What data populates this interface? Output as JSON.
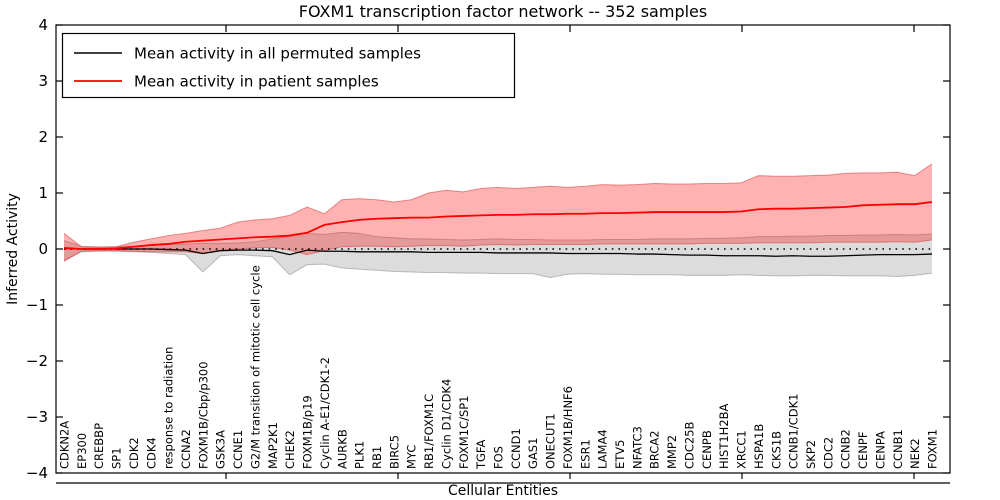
{
  "chart_data": {
    "type": "line",
    "title": "FOXM1 transcription factor network -- 352 samples",
    "xlabel": "Cellular Entities",
    "ylabel": "Inferred Activity",
    "ylim": [
      -4,
      4
    ],
    "yticks": [
      "4",
      "3",
      "2",
      "1",
      "0",
      "−1",
      "−2",
      "−3",
      "−4"
    ],
    "grid": false,
    "legend_position": "upper left",
    "reference_line": {
      "y": 0,
      "style": "dotted",
      "color": "#000000"
    },
    "categories": [
      "CDKN2A",
      "EP300",
      "CREBBP",
      "SP1",
      "CDK2",
      "CDK4",
      "response to radiation",
      "CCNA2",
      "FOXM1B/Cbp/p300",
      "GSK3A",
      "CCNE1",
      "G2/M transition of mitotic cell cycle",
      "MAP2K1",
      "CHEK2",
      "FOXM1B/p19",
      "Cyclin A-E1/CDK1-2",
      "AURKB",
      "PLK1",
      "RB1",
      "BIRC5",
      "MYC",
      "RB1/FOXM1C",
      "Cyclin D1/CDK4",
      "FOXM1C/SP1",
      "TGFA",
      "FOS",
      "CCND1",
      "GAS1",
      "ONECUT1",
      "FOXM1B/HNF6",
      "ESR1",
      "LAMA4",
      "ETV5",
      "NFATC3",
      "BRCA2",
      "MMP2",
      "CDC25B",
      "CENPB",
      "HIST1H2BA",
      "XRCC1",
      "HSPA1B",
      "CKS1B",
      "CCNB1/CDK1",
      "SKP2",
      "CDC2",
      "CCNB2",
      "CENPF",
      "CENPA",
      "CCNB1",
      "NEK2",
      "FOXM1"
    ],
    "legend": [
      {
        "label": "Mean activity in all permuted samples",
        "color": "#000000"
      },
      {
        "label": "Mean activity in patient samples",
        "color": "#ff0000"
      }
    ],
    "series": [
      {
        "name": "permuted band (mean ± s.d.)",
        "type": "band",
        "color": "rgba(125,125,125,0.27)",
        "edge": "rgba(140,140,140,0.55)",
        "upper": [
          0.15,
          0.05,
          0.04,
          0.04,
          0.05,
          0.06,
          0.08,
          0.09,
          0.1,
          0.1,
          0.11,
          0.13,
          0.18,
          0.22,
          0.28,
          0.26,
          0.3,
          0.28,
          0.22,
          0.2,
          0.18,
          0.18,
          0.17,
          0.16,
          0.17,
          0.18,
          0.17,
          0.17,
          0.16,
          0.16,
          0.16,
          0.17,
          0.17,
          0.17,
          0.18,
          0.18,
          0.18,
          0.19,
          0.19,
          0.2,
          0.22,
          0.22,
          0.23,
          0.23,
          0.24,
          0.24,
          0.25,
          0.25,
          0.26,
          0.25,
          0.27
        ],
        "lower": [
          -0.2,
          -0.05,
          -0.04,
          -0.04,
          -0.05,
          -0.06,
          -0.08,
          -0.1,
          -0.41,
          -0.12,
          -0.1,
          -0.12,
          -0.14,
          -0.46,
          -0.28,
          -0.27,
          -0.34,
          -0.36,
          -0.38,
          -0.4,
          -0.41,
          -0.42,
          -0.42,
          -0.43,
          -0.43,
          -0.44,
          -0.44,
          -0.44,
          -0.51,
          -0.45,
          -0.44,
          -0.45,
          -0.45,
          -0.46,
          -0.46,
          -0.46,
          -0.47,
          -0.47,
          -0.47,
          -0.46,
          -0.47,
          -0.48,
          -0.48,
          -0.47,
          -0.47,
          -0.48,
          -0.48,
          -0.48,
          -0.49,
          -0.47,
          -0.43
        ]
      },
      {
        "name": "patient band (mean ± s.d.)",
        "type": "band",
        "color": "rgba(255,0,0,0.30)",
        "edge": "rgba(215,60,60,0.55)",
        "upper": [
          0.28,
          0.04,
          0.03,
          0.04,
          0.12,
          0.18,
          0.24,
          0.28,
          0.33,
          0.37,
          0.48,
          0.52,
          0.54,
          0.6,
          0.75,
          0.63,
          0.88,
          0.9,
          0.88,
          0.84,
          0.88,
          1.0,
          1.05,
          1.02,
          1.08,
          1.1,
          1.08,
          1.1,
          1.12,
          1.1,
          1.12,
          1.15,
          1.14,
          1.15,
          1.17,
          1.16,
          1.16,
          1.17,
          1.17,
          1.18,
          1.31,
          1.3,
          1.3,
          1.31,
          1.32,
          1.35,
          1.36,
          1.36,
          1.37,
          1.31,
          1.52
        ],
        "lower": [
          -0.22,
          -0.04,
          -0.03,
          -0.03,
          -0.04,
          -0.05,
          -0.05,
          -0.05,
          -0.08,
          -0.02,
          0.0,
          0.02,
          0.03,
          -0.02,
          -0.1,
          -0.03,
          0.04,
          0.05,
          0.05,
          0.04,
          0.05,
          0.06,
          0.06,
          0.05,
          0.07,
          0.08,
          0.07,
          0.08,
          0.08,
          0.08,
          0.08,
          0.09,
          0.09,
          0.09,
          0.09,
          0.09,
          0.09,
          0.1,
          0.1,
          0.1,
          0.11,
          0.11,
          0.11,
          0.11,
          0.12,
          0.12,
          0.12,
          0.12,
          0.13,
          0.12,
          0.16
        ]
      },
      {
        "name": "zero reference",
        "type": "hline",
        "y": 0,
        "style": "dotted",
        "color": "#000000"
      },
      {
        "name": "Mean activity in all permuted samples",
        "type": "line",
        "color": "#000000",
        "width": 1.3,
        "values": [
          0.01,
          0.0,
          0.0,
          0.0,
          0.0,
          0.0,
          -0.01,
          -0.02,
          -0.08,
          -0.03,
          -0.02,
          -0.02,
          -0.03,
          -0.1,
          -0.02,
          -0.04,
          -0.04,
          -0.05,
          -0.05,
          -0.05,
          -0.05,
          -0.06,
          -0.06,
          -0.06,
          -0.06,
          -0.07,
          -0.07,
          -0.07,
          -0.07,
          -0.08,
          -0.08,
          -0.08,
          -0.08,
          -0.09,
          -0.09,
          -0.1,
          -0.11,
          -0.11,
          -0.12,
          -0.12,
          -0.12,
          -0.13,
          -0.12,
          -0.13,
          -0.13,
          -0.12,
          -0.11,
          -0.1,
          -0.1,
          -0.1,
          -0.09
        ]
      },
      {
        "name": "Mean activity in patient samples",
        "type": "line",
        "color": "#ff0000",
        "width": 1.8,
        "values": [
          0.02,
          0.0,
          0.0,
          0.01,
          0.04,
          0.07,
          0.09,
          0.13,
          0.15,
          0.17,
          0.19,
          0.21,
          0.22,
          0.24,
          0.29,
          0.43,
          0.48,
          0.52,
          0.54,
          0.55,
          0.56,
          0.56,
          0.58,
          0.59,
          0.6,
          0.61,
          0.61,
          0.62,
          0.62,
          0.63,
          0.63,
          0.64,
          0.64,
          0.65,
          0.66,
          0.66,
          0.66,
          0.66,
          0.66,
          0.67,
          0.71,
          0.72,
          0.72,
          0.73,
          0.74,
          0.75,
          0.78,
          0.79,
          0.8,
          0.8,
          0.84
        ]
      }
    ]
  }
}
